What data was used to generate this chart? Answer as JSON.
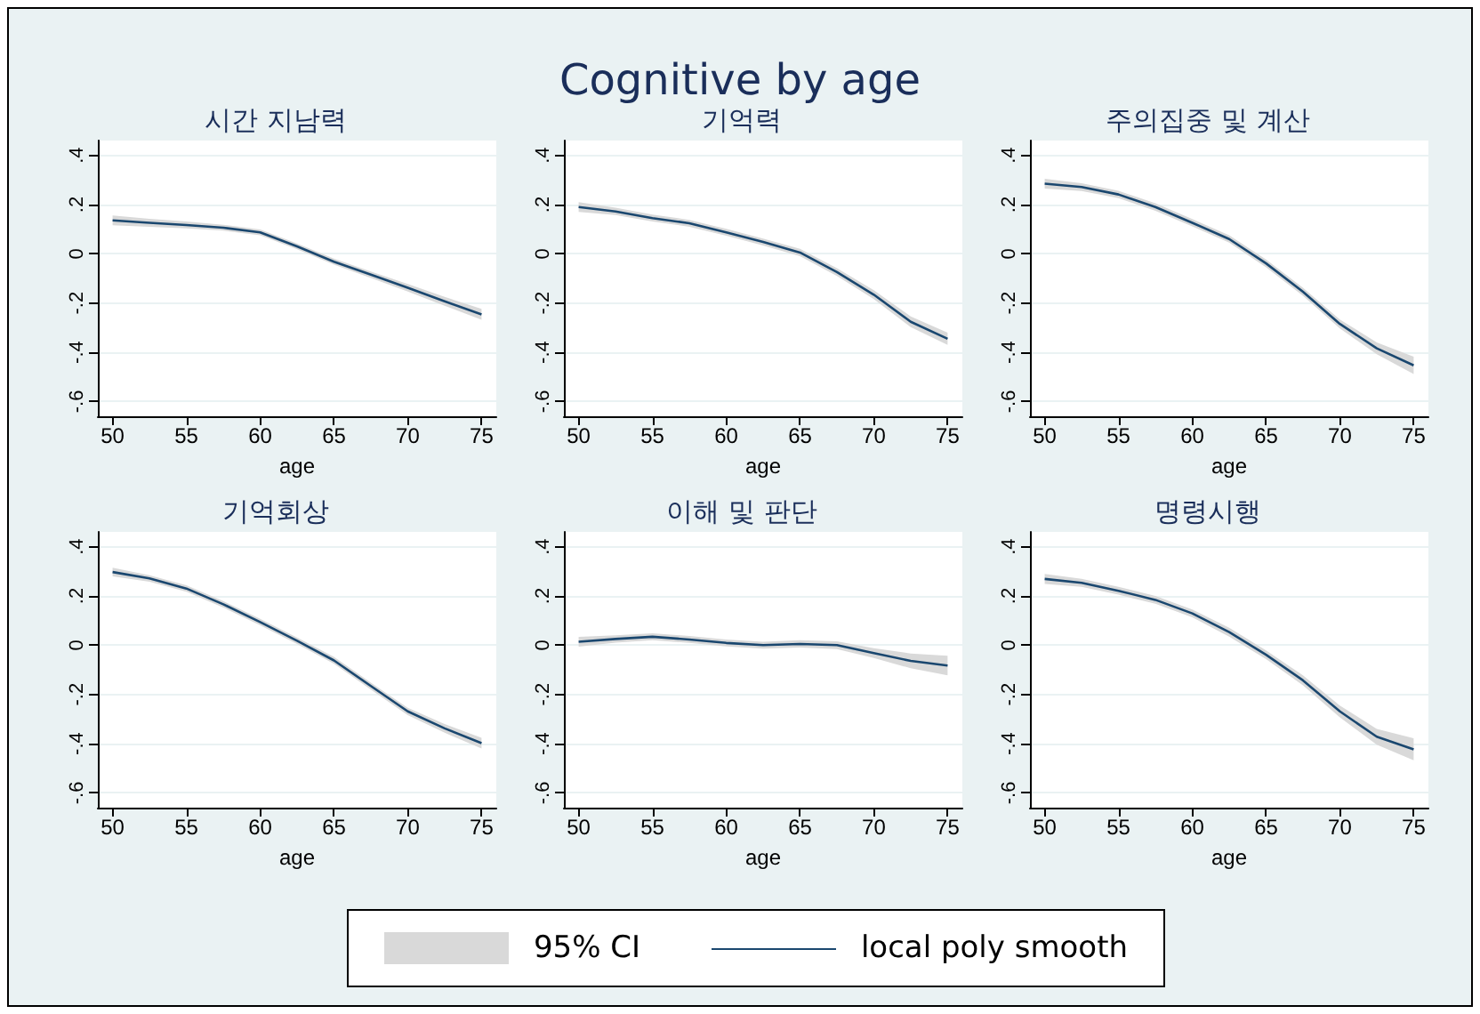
{
  "chart_data": [
    {
      "type": "other",
      "title": "Cognitive by age",
      "annotations": [
        "95% CI"
      ]
    },
    {
      "type": "line",
      "title": "시간 지남력",
      "xlabel": "age",
      "x": [
        50,
        52.5,
        55,
        57.5,
        60,
        62.5,
        65,
        67.5,
        70,
        72.5,
        75
      ],
      "xlim": [
        49,
        76
      ],
      "xticks": [
        50,
        55,
        60,
        65,
        70,
        75
      ],
      "ylim": [
        -0.66,
        0.46
      ],
      "yticks": [
        {
          "value": -0.6,
          "label": "-.6"
        },
        {
          "value": -0.4,
          "label": "-.4"
        },
        {
          "value": -0.2,
          "label": "-.2"
        },
        {
          "value": 0,
          "label": "0"
        },
        {
          "value": 0.2,
          "label": ".2"
        },
        {
          "value": 0.4,
          "label": ".4"
        }
      ],
      "grid": "y",
      "legend": "bottom",
      "marker": "none",
      "series": [
        {
          "name": "local poly smooth",
          "color": "#1a476f",
          "values": [
            0.136,
            0.126,
            0.117,
            0.106,
            0.087,
            0.03,
            -0.032,
            -0.085,
            -0.138,
            -0.193,
            -0.246
          ],
          "lower": [
            0.116,
            0.11,
            0.103,
            0.094,
            0.075,
            0.018,
            -0.044,
            -0.098,
            -0.153,
            -0.211,
            -0.268
          ],
          "upper": [
            0.156,
            0.142,
            0.131,
            0.118,
            0.099,
            0.042,
            -0.02,
            -0.072,
            -0.123,
            -0.175,
            -0.224
          ]
        }
      ]
    },
    {
      "type": "line",
      "title": "기억력",
      "xlabel": "age",
      "x": [
        50,
        52.5,
        55,
        57.5,
        60,
        62.5,
        65,
        67.5,
        70,
        72.5,
        75
      ],
      "xlim": [
        49,
        76
      ],
      "xticks": [
        50,
        55,
        60,
        65,
        70,
        75
      ],
      "ylim": [
        -0.66,
        0.46
      ],
      "yticks": [
        {
          "value": -0.6,
          "label": "-.6"
        },
        {
          "value": -0.4,
          "label": "-.4"
        },
        {
          "value": -0.2,
          "label": "-.2"
        },
        {
          "value": 0,
          "label": "0"
        },
        {
          "value": 0.2,
          "label": ".2"
        },
        {
          "value": 0.4,
          "label": ".4"
        }
      ],
      "grid": "y",
      "marker": "none",
      "series": [
        {
          "color": "#1a476f",
          "values": [
            0.19,
            0.172,
            0.145,
            0.124,
            0.087,
            0.048,
            0.005,
            -0.074,
            -0.166,
            -0.276,
            -0.345
          ],
          "lower": [
            0.17,
            0.157,
            0.131,
            0.11,
            0.073,
            0.034,
            -0.01,
            -0.09,
            -0.184,
            -0.298,
            -0.37
          ],
          "upper": [
            0.21,
            0.187,
            0.159,
            0.138,
            0.101,
            0.062,
            0.02,
            -0.058,
            -0.148,
            -0.254,
            -0.32
          ]
        }
      ]
    },
    {
      "type": "line",
      "title": "주의집중 및 계산",
      "xlabel": "age",
      "x": [
        50,
        52.5,
        55,
        57.5,
        60,
        62.5,
        65,
        67.5,
        70,
        72.5,
        75
      ],
      "xlim": [
        49,
        76
      ],
      "xticks": [
        50,
        55,
        60,
        65,
        70,
        75
      ],
      "ylim": [
        -0.66,
        0.46
      ],
      "yticks": [
        {
          "value": -0.6,
          "label": "-.6"
        },
        {
          "value": -0.4,
          "label": "-.4"
        },
        {
          "value": -0.2,
          "label": "-.2"
        },
        {
          "value": 0,
          "label": "0"
        },
        {
          "value": 0.2,
          "label": ".2"
        },
        {
          "value": 0.4,
          "label": ".4"
        }
      ],
      "grid": "y",
      "marker": "none",
      "series": [
        {
          "color": "#1a476f",
          "values": [
            0.285,
            0.271,
            0.241,
            0.19,
            0.126,
            0.06,
            -0.039,
            -0.154,
            -0.285,
            -0.384,
            -0.453
          ],
          "lower": [
            0.265,
            0.255,
            0.226,
            0.175,
            0.111,
            0.045,
            -0.055,
            -0.17,
            -0.303,
            -0.408,
            -0.488
          ],
          "upper": [
            0.305,
            0.287,
            0.256,
            0.205,
            0.141,
            0.075,
            -0.023,
            -0.138,
            -0.267,
            -0.36,
            -0.418
          ]
        }
      ]
    },
    {
      "type": "line",
      "title": "기억회상",
      "xlabel": "age",
      "x": [
        50,
        52.5,
        55,
        57.5,
        60,
        62.5,
        65,
        67.5,
        70,
        72.5,
        75
      ],
      "xlim": [
        49,
        76
      ],
      "xticks": [
        50,
        55,
        60,
        65,
        70,
        75
      ],
      "ylim": [
        -0.66,
        0.46
      ],
      "yticks": [
        {
          "value": -0.6,
          "label": "-.6"
        },
        {
          "value": -0.4,
          "label": "-.4"
        },
        {
          "value": -0.2,
          "label": "-.2"
        },
        {
          "value": 0,
          "label": "0"
        },
        {
          "value": 0.2,
          "label": ".2"
        },
        {
          "value": 0.4,
          "label": ".4"
        }
      ],
      "grid": "y",
      "marker": "none",
      "series": [
        {
          "color": "#1a476f",
          "values": [
            0.297,
            0.271,
            0.23,
            0.166,
            0.094,
            0.018,
            -0.062,
            -0.166,
            -0.269,
            -0.338,
            -0.398
          ],
          "lower": [
            0.279,
            0.258,
            0.217,
            0.153,
            0.081,
            0.005,
            -0.076,
            -0.18,
            -0.284,
            -0.356,
            -0.42
          ],
          "upper": [
            0.315,
            0.284,
            0.243,
            0.179,
            0.107,
            0.031,
            -0.048,
            -0.152,
            -0.254,
            -0.32,
            -0.376
          ]
        }
      ]
    },
    {
      "type": "line",
      "title": "이해 및 판단",
      "xlabel": "age",
      "x": [
        50,
        52.5,
        55,
        57.5,
        60,
        62.5,
        65,
        67.5,
        70,
        72.5,
        75
      ],
      "xlim": [
        49,
        76
      ],
      "xticks": [
        50,
        55,
        60,
        65,
        70,
        75
      ],
      "ylim": [
        -0.66,
        0.46
      ],
      "yticks": [
        {
          "value": -0.6,
          "label": "-.6"
        },
        {
          "value": -0.4,
          "label": "-.4"
        },
        {
          "value": -0.2,
          "label": "-.2"
        },
        {
          "value": 0,
          "label": "0"
        },
        {
          "value": 0.2,
          "label": ".2"
        },
        {
          "value": 0.4,
          "label": ".4"
        }
      ],
      "grid": "y",
      "marker": "none",
      "series": [
        {
          "color": "#1a476f",
          "values": [
            0.014,
            0.025,
            0.034,
            0.023,
            0.009,
            0,
            0.005,
            0,
            -0.032,
            -0.064,
            -0.083
          ],
          "lower": [
            -0.006,
            0.01,
            0.02,
            0.009,
            -0.005,
            -0.014,
            -0.01,
            -0.016,
            -0.052,
            -0.094,
            -0.123
          ],
          "upper": [
            0.034,
            0.04,
            0.048,
            0.037,
            0.023,
            0.014,
            0.02,
            0.016,
            -0.012,
            -0.034,
            -0.043
          ]
        }
      ]
    },
    {
      "type": "line",
      "title": "명령시행",
      "xlabel": "age",
      "x": [
        50,
        52.5,
        55,
        57.5,
        60,
        62.5,
        65,
        67.5,
        70,
        72.5,
        75
      ],
      "xlim": [
        49,
        76
      ],
      "xticks": [
        50,
        55,
        60,
        65,
        70,
        75
      ],
      "ylim": [
        -0.66,
        0.46
      ],
      "yticks": [
        {
          "value": -0.6,
          "label": "-.6"
        },
        {
          "value": -0.4,
          "label": "-.4"
        },
        {
          "value": -0.2,
          "label": "-.2"
        },
        {
          "value": 0,
          "label": "0"
        },
        {
          "value": 0.2,
          "label": ".2"
        },
        {
          "value": 0.4,
          "label": ".4"
        }
      ],
      "grid": "y",
      "marker": "none",
      "series": [
        {
          "color": "#1a476f",
          "values": [
            0.269,
            0.253,
            0.221,
            0.184,
            0.129,
            0.053,
            -0.039,
            -0.143,
            -0.269,
            -0.372,
            -0.423
          ],
          "lower": [
            0.249,
            0.237,
            0.205,
            0.168,
            0.113,
            0.035,
            -0.057,
            -0.163,
            -0.293,
            -0.404,
            -0.468
          ],
          "upper": [
            0.289,
            0.269,
            0.237,
            0.2,
            0.145,
            0.071,
            -0.021,
            -0.123,
            -0.245,
            -0.34,
            -0.378
          ]
        }
      ]
    }
  ]
}
